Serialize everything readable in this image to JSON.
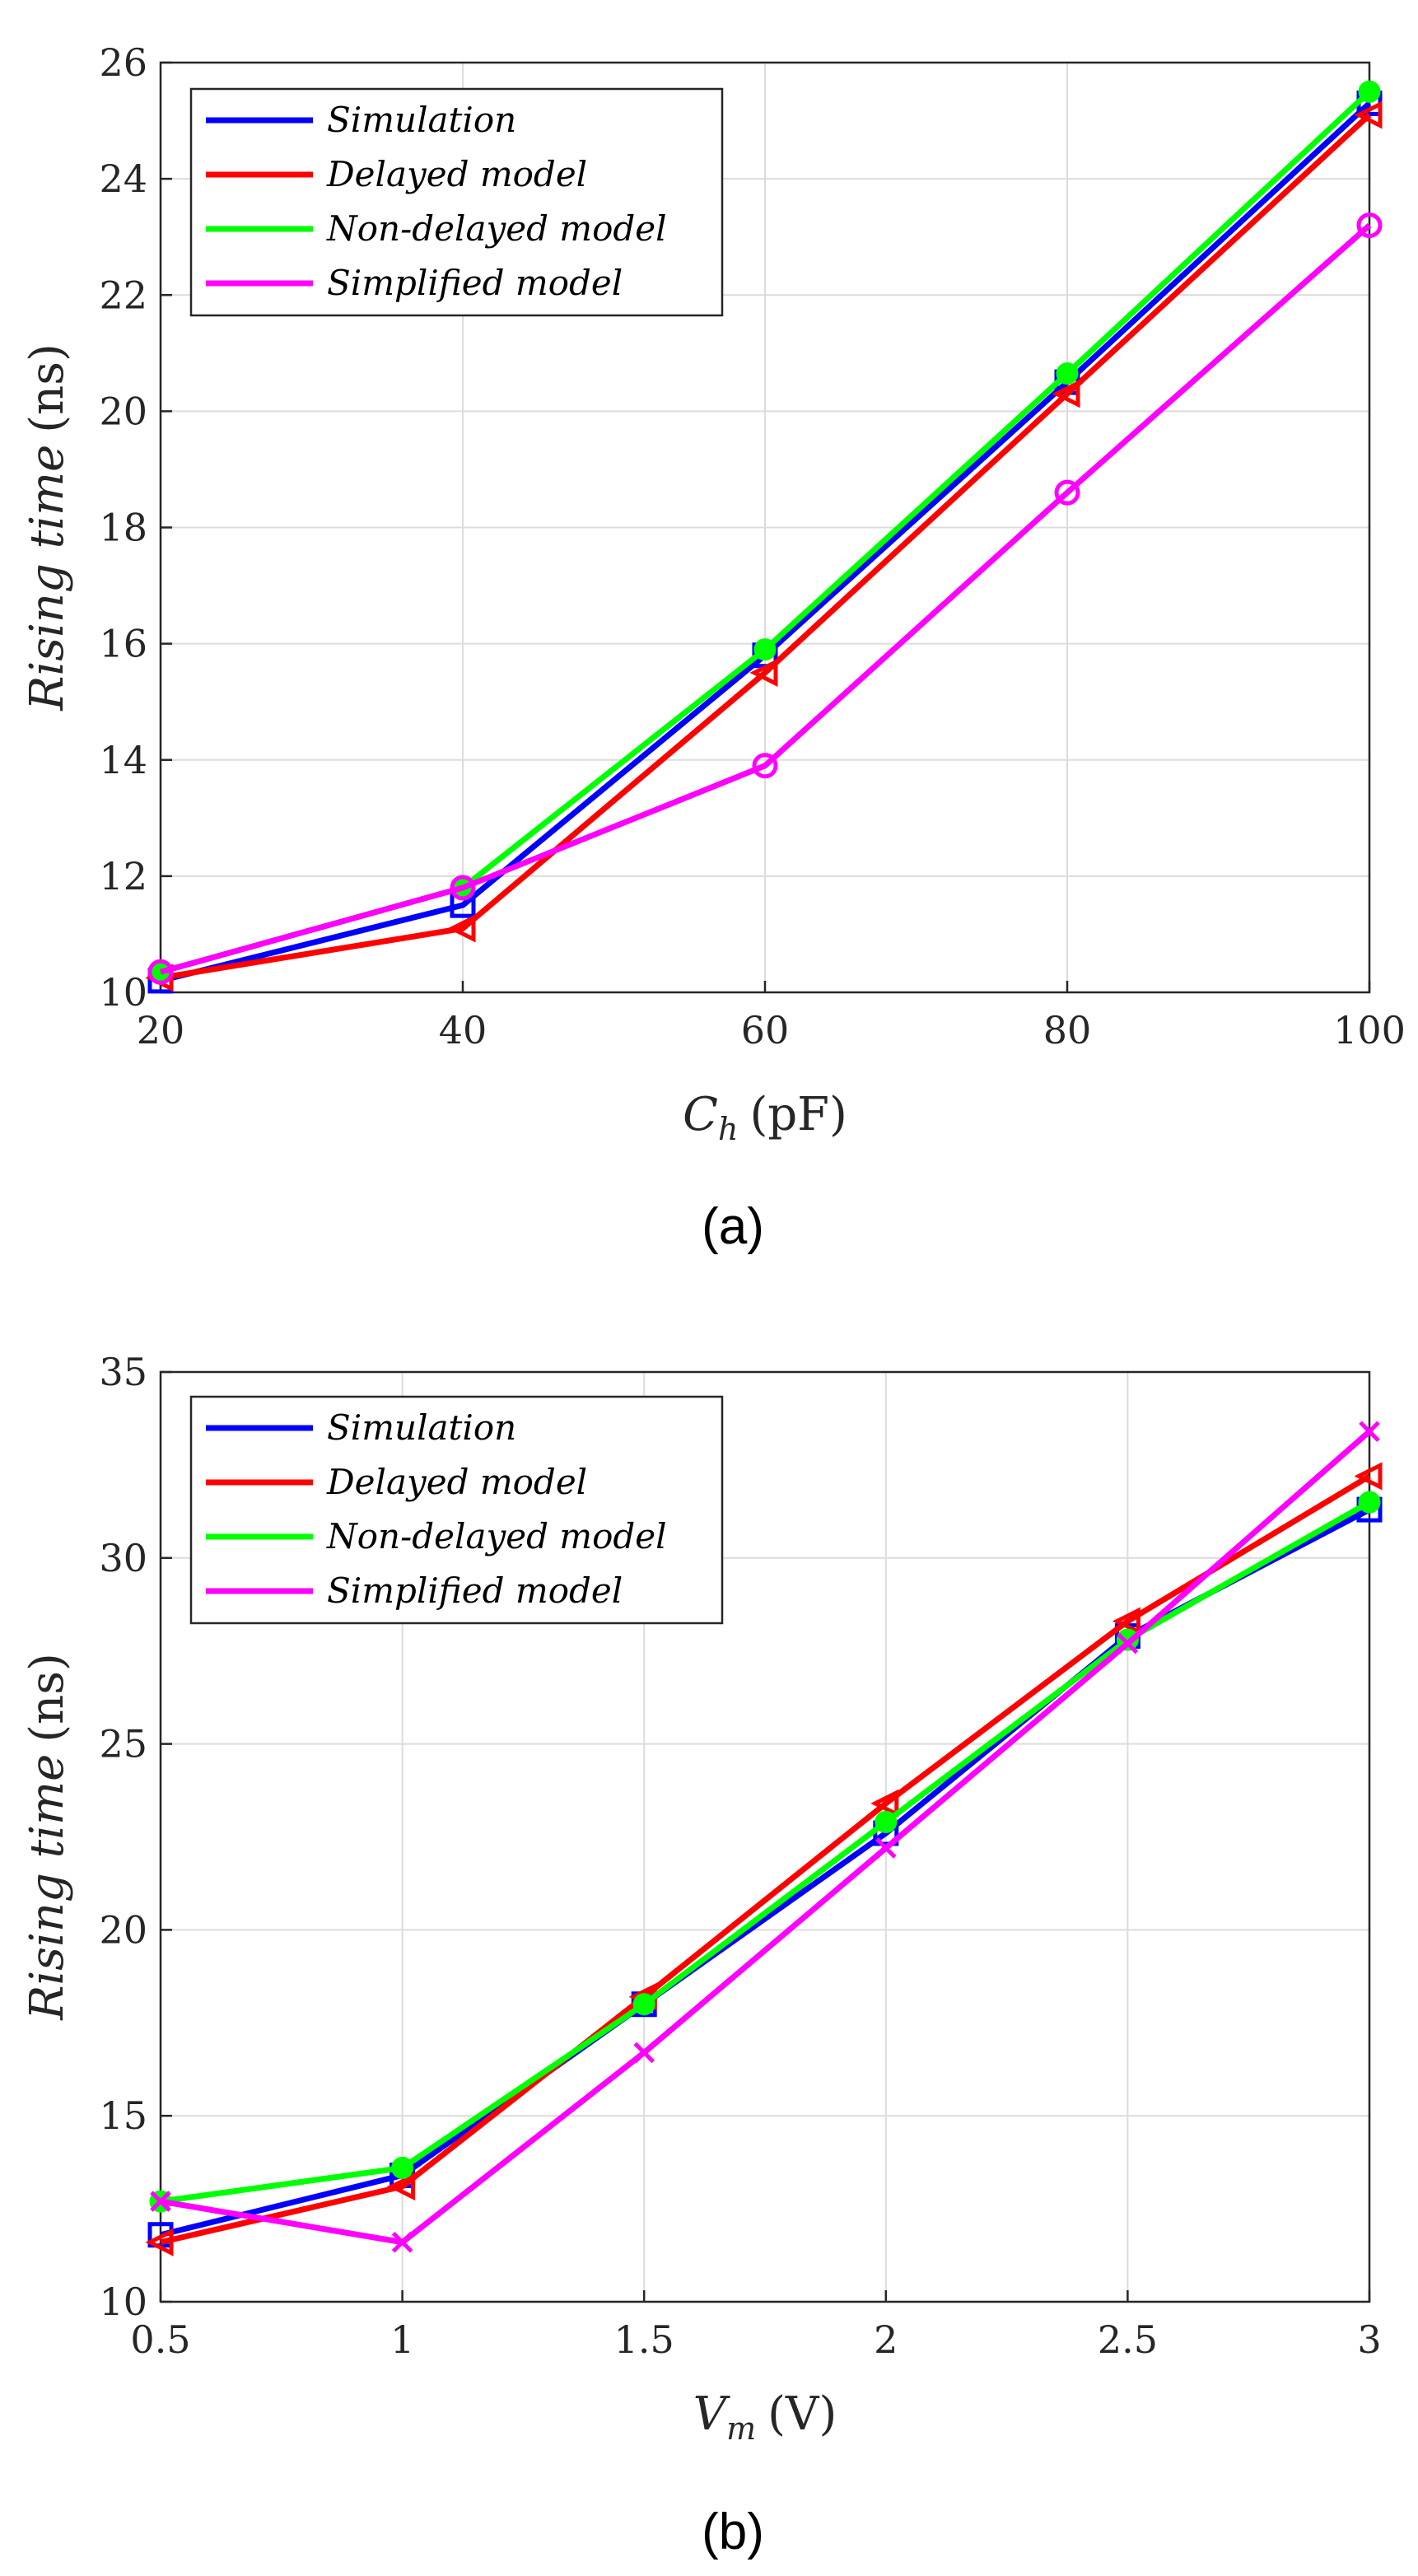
{
  "chart_data": [
    {
      "type": "line",
      "panel_label": "(a)",
      "xlabel_main": "C",
      "xlabel_sub": "h",
      "xlabel_unit": "(pF)",
      "ylabel_main": "Rising time",
      "ylabel_unit": "(ns)",
      "x": [
        20,
        40,
        60,
        80,
        100
      ],
      "xlim": [
        20,
        100
      ],
      "ylim": [
        10,
        26
      ],
      "xticks": [
        "20",
        "40",
        "60",
        "80",
        "100"
      ],
      "yticks": [
        "10",
        "12",
        "14",
        "16",
        "18",
        "20",
        "22",
        "24",
        "26"
      ],
      "legend_position": "top-left",
      "series": [
        {
          "name": "Simulation",
          "color": "#0000ff",
          "marker": "square",
          "values": [
            10.2,
            11.5,
            15.8,
            20.5,
            25.3
          ]
        },
        {
          "name": "Delayed model",
          "color": "#ff0000",
          "marker": "triangle-left",
          "values": [
            10.25,
            11.1,
            15.5,
            20.3,
            25.1
          ]
        },
        {
          "name": "Non-delayed model",
          "color": "#00ff00",
          "marker": "circle-filled",
          "values": [
            10.35,
            11.8,
            15.9,
            20.65,
            25.5
          ]
        },
        {
          "name": "Simplified model",
          "color": "#ff00ff",
          "marker": "circle-open",
          "values": [
            10.35,
            11.8,
            13.9,
            18.6,
            23.2
          ]
        }
      ]
    },
    {
      "type": "line",
      "panel_label": "(b)",
      "xlabel_main": "V",
      "xlabel_sub": "m",
      "xlabel_unit": "(V)",
      "ylabel_main": "Rising time",
      "ylabel_unit": "(ns)",
      "x": [
        0.5,
        1,
        1.5,
        2,
        2.5,
        3
      ],
      "xlim": [
        0.5,
        3
      ],
      "ylim": [
        10,
        35
      ],
      "xticks": [
        "0.5",
        "1",
        "1.5",
        "2",
        "2.5",
        "3"
      ],
      "yticks": [
        "10",
        "15",
        "20",
        "25",
        "30",
        "35"
      ],
      "legend_position": "top-left",
      "series": [
        {
          "name": "Simulation",
          "color": "#0000ff",
          "marker": "square",
          "values": [
            11.8,
            13.4,
            18.0,
            22.6,
            27.9,
            31.3
          ]
        },
        {
          "name": "Delayed model",
          "color": "#ff0000",
          "marker": "triangle-left",
          "values": [
            11.6,
            13.1,
            18.2,
            23.4,
            28.3,
            32.2
          ]
        },
        {
          "name": "Non-delayed model",
          "color": "#00ff00",
          "marker": "circle-filled",
          "values": [
            12.7,
            13.6,
            18.0,
            22.9,
            27.8,
            31.5
          ]
        },
        {
          "name": "Simplified model",
          "color": "#ff00ff",
          "marker": "x",
          "values": [
            12.7,
            11.6,
            16.7,
            22.2,
            27.7,
            33.4
          ]
        }
      ]
    }
  ]
}
